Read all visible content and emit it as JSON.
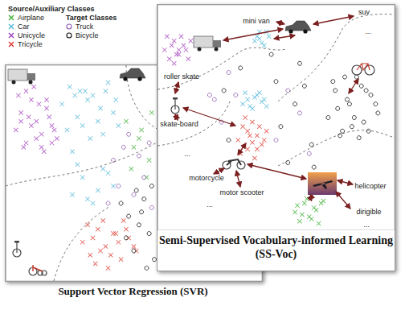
{
  "chart_data": [
    {
      "type": "scatter",
      "title": "Support Vector Regression (SVR)",
      "xlim": [
        0,
        100
      ],
      "ylim": [
        0,
        100
      ],
      "tick_labels": false,
      "grid": false,
      "legend": "upper left",
      "series": [
        {
          "name": "Airplane",
          "group": "Source/Auxiliary Classes",
          "color": "#3cb034",
          "marker": "x",
          "x": [
            50,
            53,
            56,
            47,
            55,
            52,
            57,
            49
          ],
          "values": [
            62,
            70,
            56,
            74,
            48,
            66,
            78,
            52
          ]
        },
        {
          "name": "Car",
          "group": "Source/Auxiliary Classes",
          "color": "#4fb7d8",
          "marker": "x",
          "x": [
            22,
            25,
            28,
            31,
            34,
            37,
            40,
            43,
            24,
            30,
            36,
            42,
            27,
            33,
            39,
            26,
            32,
            38,
            44,
            29,
            26,
            30,
            34,
            38,
            42,
            28,
            36,
            40,
            32
          ],
          "values": [
            82,
            90,
            76,
            88,
            86,
            80,
            92,
            84,
            70,
            72,
            74,
            78,
            86,
            66,
            88,
            60,
            84,
            68,
            72,
            88,
            40,
            48,
            36,
            52,
            44,
            54,
            42,
            50,
            38
          ]
        },
        {
          "name": "Unicycle",
          "group": "Source/Auxiliary Classes",
          "color": "#a03cbc",
          "marker": "x",
          "x": [
            4,
            6,
            8,
            10,
            12,
            14,
            16,
            18,
            20,
            5,
            7,
            9,
            11,
            13,
            15,
            17,
            19,
            8,
            12,
            16,
            10,
            14,
            6,
            18
          ],
          "values": [
            70,
            78,
            64,
            84,
            74,
            68,
            80,
            72,
            66,
            86,
            62,
            76,
            90,
            82,
            60,
            76,
            70,
            88,
            66,
            84,
            72,
            62,
            74,
            64
          ]
        },
        {
          "name": "Tricycle",
          "group": "Source/Auxiliary Classes",
          "color": "#d9342b",
          "marker": "x",
          "x": [
            30,
            33,
            36,
            39,
            42,
            45,
            48,
            51,
            32,
            35,
            38,
            41,
            44,
            47,
            50,
            34,
            40,
            46,
            37,
            43
          ],
          "values": [
            18,
            12,
            24,
            16,
            22,
            10,
            20,
            14,
            26,
            8,
            28,
            12,
            18,
            24,
            16,
            20,
            6,
            28,
            14,
            22
          ]
        },
        {
          "name": "Truck",
          "group": "Target Classes",
          "color": "#8e5ab0",
          "marker": "o",
          "x": [
            42,
            46,
            50,
            54,
            57,
            44,
            48,
            52,
            56,
            40
          ],
          "values": [
            56,
            62,
            40,
            48,
            34,
            44,
            68,
            58,
            64,
            36
          ]
        },
        {
          "name": "Bicycle",
          "group": "Target Classes",
          "color": "#111111",
          "marker": "o",
          "x": [
            48,
            52,
            56,
            45,
            50,
            54,
            58,
            47,
            53,
            57,
            55,
            51
          ],
          "values": [
            30,
            26,
            22,
            36,
            14,
            38,
            10,
            20,
            32,
            44,
            6,
            42
          ]
        }
      ]
    },
    {
      "type": "scatter",
      "title": "Semi-Supervised Vocabulary-informed Learning (SS-Voc)",
      "xlim": [
        0,
        100
      ],
      "ylim": [
        0,
        100
      ],
      "tick_labels": false,
      "grid": false,
      "annotations": [
        "mini van",
        "suv",
        "...",
        "roller skate",
        "skate-board",
        "...",
        "motorcycle",
        "motor scooter",
        "...",
        "helicopter",
        "dirigible",
        "..."
      ],
      "series": [
        {
          "name": "Airplane",
          "color": "#3cb034",
          "marker": "x",
          "x": [
            58,
            60,
            62,
            64,
            66,
            68,
            70,
            59,
            61,
            63,
            65,
            67,
            69
          ],
          "values": [
            8,
            4,
            12,
            6,
            10,
            3,
            13,
            11,
            7,
            14,
            5,
            9,
            12
          ]
        },
        {
          "name": "Car",
          "color": "#4fb7d8",
          "marker": "x",
          "x": [
            41,
            43,
            45,
            47,
            42,
            44,
            46,
            43,
            36,
            38,
            40,
            42,
            44,
            46,
            37,
            41,
            45,
            39,
            43
          ],
          "values": [
            84,
            88,
            82,
            86,
            86,
            83,
            88,
            85,
            56,
            58,
            54,
            60,
            57,
            55,
            61,
            59,
            58,
            55,
            61
          ]
        },
        {
          "name": "Unicycle",
          "color": "#a03cbc",
          "marker": "x",
          "x": [
            3,
            5,
            7,
            9,
            11,
            13,
            4,
            6,
            8,
            10,
            12,
            14,
            7,
            9
          ],
          "values": [
            80,
            76,
            84,
            78,
            82,
            76,
            86,
            82,
            78,
            86,
            80,
            84,
            74,
            80
          ]
        },
        {
          "name": "Tricycle",
          "color": "#d9342b",
          "marker": "x",
          "x": [
            34,
            36,
            38,
            40,
            42,
            44,
            46,
            35,
            37,
            39,
            41,
            43,
            45,
            38,
            42,
            40
          ],
          "values": [
            40,
            46,
            36,
            48,
            42,
            38,
            44,
            34,
            50,
            42,
            32,
            46,
            40,
            44,
            36,
            39
          ]
        },
        {
          "name": "Truck",
          "color": "#8e5ab0",
          "marker": "o",
          "x": [
            22,
            24,
            30,
            50,
            55,
            60,
            64,
            33,
            27
          ],
          "values": [
            60,
            58,
            70,
            40,
            62,
            52,
            34,
            60,
            48
          ]
        },
        {
          "name": "Bicycle",
          "color": "#111111",
          "marker": "o",
          "x": [
            72,
            75,
            78,
            81,
            84,
            87,
            90,
            93,
            74,
            77,
            80,
            83,
            86,
            89,
            92,
            76,
            82,
            88,
            79,
            85,
            28,
            35,
            50,
            55,
            60,
            65,
            52,
            58,
            48,
            62,
            66,
            30
          ],
          "values": [
            50,
            62,
            44,
            56,
            68,
            48,
            60,
            52,
            66,
            42,
            58,
            50,
            64,
            44,
            56,
            54,
            46,
            62,
            68,
            41,
            62,
            72,
            66,
            30,
            74,
            38,
            46,
            56,
            78,
            64,
            28,
            40
          ]
        }
      ]
    }
  ]
}
